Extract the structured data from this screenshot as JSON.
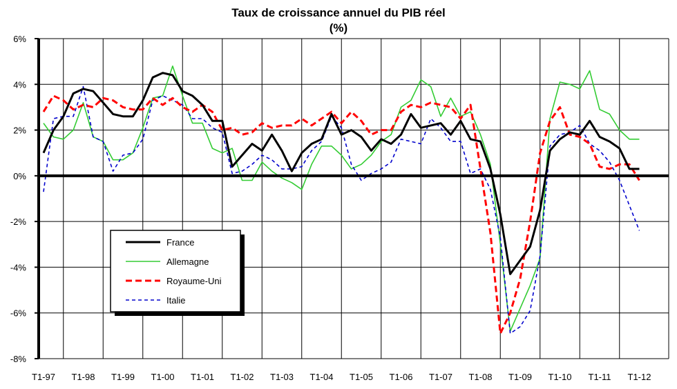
{
  "chart_data": {
    "type": "line",
    "title": "Taux de croissance annuel du PIB réel",
    "subtitle": "(%)",
    "ylim": [
      -8,
      6
    ],
    "yticks": [
      6,
      4,
      2,
      0,
      -2,
      -4,
      -6,
      -8
    ],
    "ytick_labels": [
      "6%",
      "4%",
      "2%",
      "0%",
      "-2%",
      "-4%",
      "-6%",
      "-8%"
    ],
    "xtick_labels": [
      "T1-97",
      "T1-98",
      "T1-99",
      "T1-00",
      "T1-01",
      "T1-02",
      "T1-03",
      "T1-04",
      "T1-05",
      "T1-06",
      "T1-07",
      "T1-08",
      "T1-09",
      "T1-10",
      "T1-11",
      "T1-12"
    ],
    "grid": true,
    "legend_position": "lower-left",
    "series": [
      {
        "name": "France",
        "color": "#000000",
        "style": "solid-thick",
        "values": [
          1.0,
          2.0,
          2.6,
          3.6,
          3.8,
          3.7,
          3.2,
          2.7,
          2.6,
          2.6,
          3.3,
          4.3,
          4.5,
          4.4,
          3.7,
          3.5,
          3.1,
          2.4,
          2.4,
          0.4,
          0.9,
          1.4,
          1.1,
          1.8,
          1.1,
          0.2,
          1.0,
          1.4,
          1.6,
          2.7,
          1.8,
          2.0,
          1.7,
          1.1,
          1.6,
          1.4,
          1.8,
          2.7,
          2.1,
          2.2,
          2.3,
          1.8,
          2.4,
          1.6,
          1.5,
          0.3,
          -1.7,
          -4.3,
          -3.7,
          -3.1,
          -1.5,
          1.1,
          1.6,
          1.9,
          1.8,
          2.4,
          1.7,
          1.5,
          1.2,
          0.3,
          0.3
        ]
      },
      {
        "name": "Allemagne",
        "color": "#33cc33",
        "style": "solid",
        "values": [
          2.3,
          1.7,
          1.6,
          2.0,
          3.2,
          1.7,
          1.5,
          0.7,
          0.7,
          1.0,
          2.1,
          3.4,
          3.5,
          4.8,
          3.5,
          2.3,
          2.3,
          1.2,
          1.0,
          1.2,
          -0.2,
          -0.2,
          0.6,
          0.2,
          -0.1,
          -0.3,
          -0.6,
          0.5,
          1.3,
          1.3,
          0.9,
          0.3,
          0.5,
          0.9,
          1.5,
          1.8,
          3.0,
          3.3,
          4.2,
          3.9,
          2.6,
          3.4,
          2.6,
          2.8,
          1.8,
          0.5,
          -3.0,
          -6.8,
          -5.8,
          -4.8,
          -3.6,
          2.5,
          4.1,
          4.0,
          3.8,
          4.6,
          2.9,
          2.7,
          2.0,
          1.6,
          1.6
        ]
      },
      {
        "name": "Royaume-Uni",
        "color": "#ff0000",
        "style": "dashed-thick",
        "values": [
          2.8,
          3.5,
          3.3,
          2.9,
          3.1,
          3.0,
          3.4,
          3.3,
          3.0,
          2.9,
          2.9,
          3.4,
          3.1,
          3.4,
          3.0,
          2.8,
          3.1,
          2.8,
          2.0,
          2.1,
          1.8,
          1.9,
          2.3,
          2.1,
          2.2,
          2.2,
          2.5,
          2.2,
          2.5,
          2.8,
          2.3,
          2.8,
          2.4,
          1.8,
          2.0,
          2.0,
          2.8,
          3.1,
          3.0,
          3.2,
          3.1,
          3.0,
          2.5,
          3.1,
          0.3,
          -2.5,
          -6.9,
          -6.0,
          -4.5,
          -2.0,
          1.0,
          2.4,
          3.0,
          1.8,
          1.7,
          1.4,
          0.4,
          0.3,
          0.5,
          0.5,
          -0.2
        ]
      },
      {
        "name": "Italie",
        "color": "#0000cc",
        "style": "dashed",
        "values": [
          -0.7,
          2.5,
          2.6,
          2.6,
          3.9,
          1.7,
          1.5,
          0.2,
          0.9,
          1.0,
          1.6,
          3.3,
          3.5,
          3.3,
          3.1,
          2.5,
          2.5,
          2.1,
          1.9,
          0.1,
          0.2,
          0.5,
          0.9,
          0.7,
          0.3,
          0.3,
          0.4,
          1.1,
          1.5,
          2.6,
          2.1,
          0.5,
          -0.2,
          0.1,
          0.3,
          0.6,
          1.6,
          1.5,
          1.4,
          2.5,
          2.1,
          1.5,
          1.5,
          0.1,
          0.3,
          -0.6,
          -2.7,
          -6.9,
          -6.6,
          -5.9,
          -3.5,
          1.3,
          1.8,
          1.9,
          2.2,
          1.4,
          1.1,
          0.6,
          -0.2,
          -1.3,
          -2.4
        ]
      }
    ]
  }
}
